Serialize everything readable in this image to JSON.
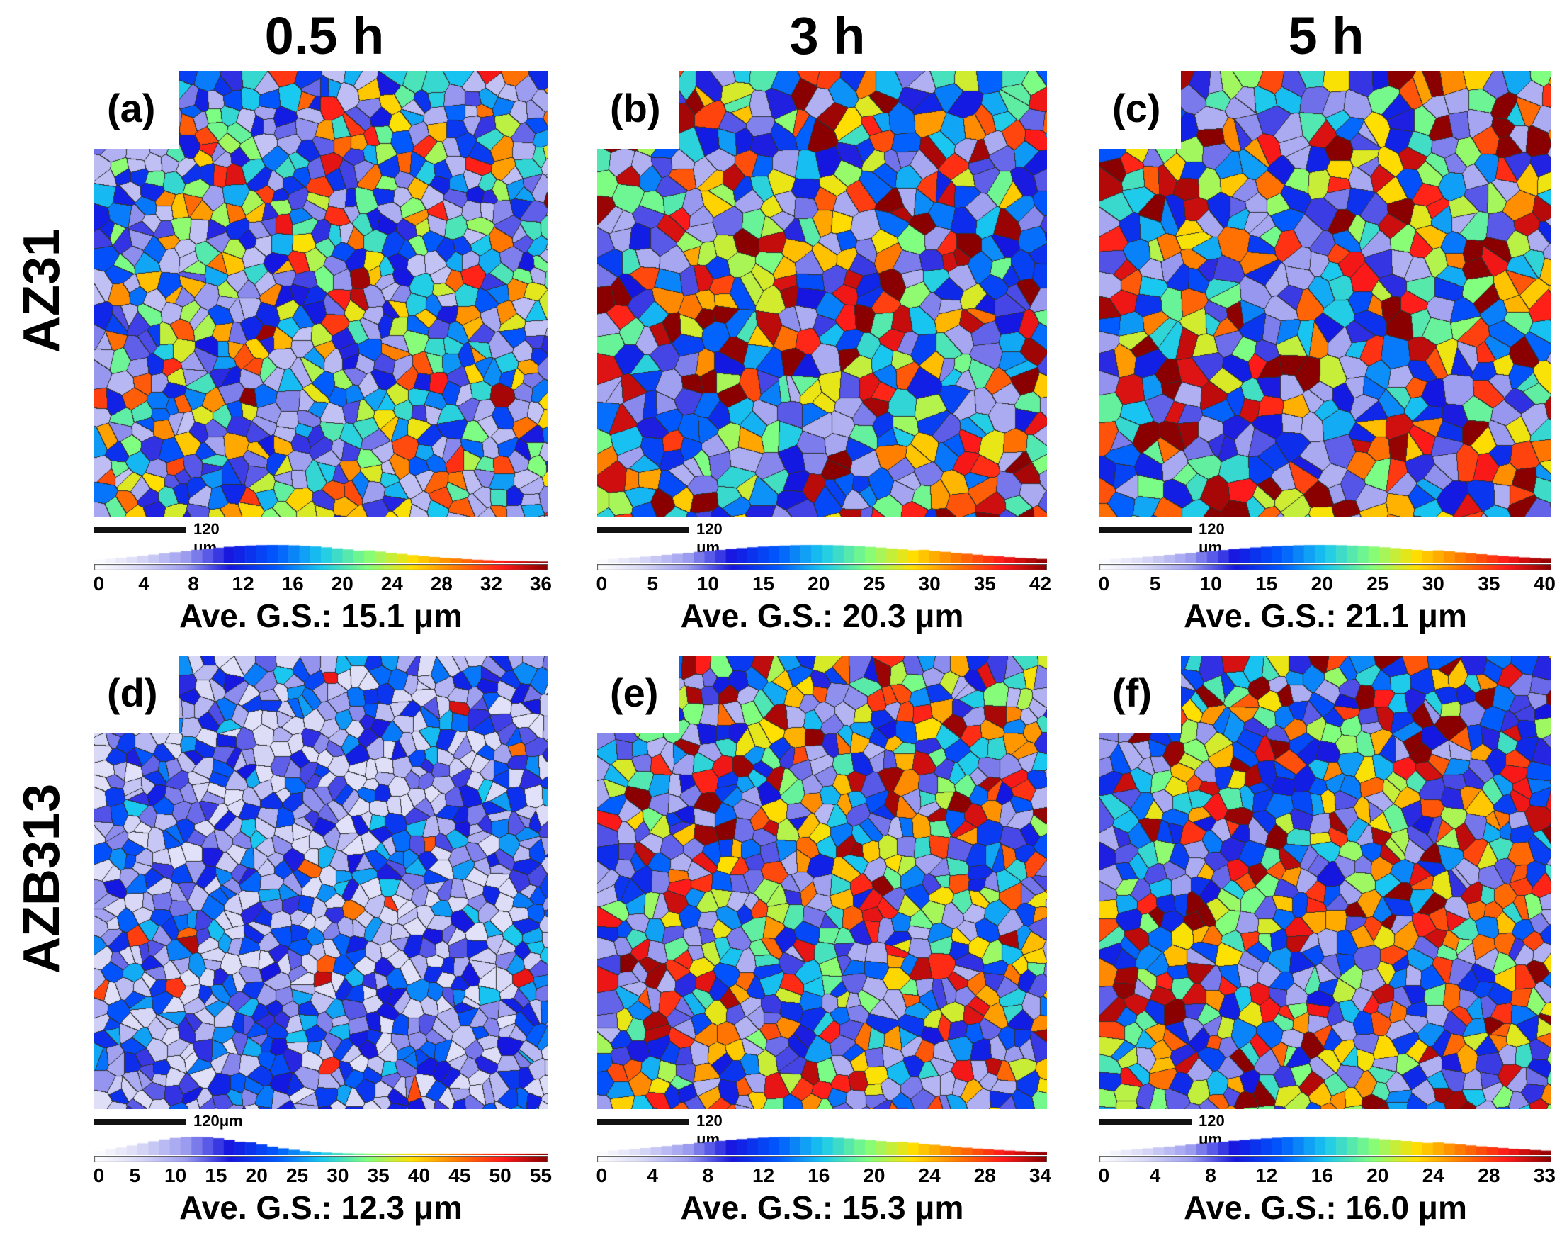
{
  "columns": [
    "0.5 h",
    "3 h",
    "5 h"
  ],
  "rows": [
    "AZ31",
    "AZB313"
  ],
  "panels": [
    {
      "label": "(a)",
      "scale": "120 μm",
      "ticks": [
        "0",
        "4",
        "8",
        "12",
        "16",
        "20",
        "24",
        "28",
        "32",
        "36"
      ],
      "ave": "Ave. G.S.: 15.1 μm",
      "mean_um": 15.1,
      "max_um": 38
    },
    {
      "label": "(b)",
      "scale": "120 μm",
      "ticks": [
        "0",
        "5",
        "10",
        "15",
        "20",
        "25",
        "30",
        "35",
        "42"
      ],
      "ave": "Ave. G.S.: 20.3 μm",
      "mean_um": 20.3,
      "max_um": 42
    },
    {
      "label": "(c)",
      "scale": "120 μm",
      "ticks": [
        "0",
        "5",
        "10",
        "15",
        "20",
        "25",
        "30",
        "35",
        "40"
      ],
      "ave": "Ave. G.S.: 21.1 μm",
      "mean_um": 21.1,
      "max_um": 43
    },
    {
      "label": "(d)",
      "scale": "120μm",
      "ticks": [
        "0",
        "5",
        "10",
        "15",
        "20",
        "25",
        "30",
        "35",
        "40",
        "45",
        "50",
        "55"
      ],
      "ave": "Ave. G.S.: 12.3 μm",
      "mean_um": 12.3,
      "max_um": 55
    },
    {
      "label": "(e)",
      "scale": "120 μm",
      "ticks": [
        "0",
        "4",
        "8",
        "12",
        "16",
        "20",
        "24",
        "28",
        "34"
      ],
      "ave": "Ave. G.S.: 15.3 μm",
      "mean_um": 15.3,
      "max_um": 34
    },
    {
      "label": "(f)",
      "scale": "120 μm",
      "ticks": [
        "0",
        "4",
        "8",
        "12",
        "16",
        "20",
        "24",
        "28",
        "33"
      ],
      "ave": "Ave. G.S.: 16.0 μm",
      "mean_um": 16.0,
      "max_um": 33
    }
  ],
  "colors": {
    "colormap": [
      "#ffffff",
      "#d9d9f7",
      "#9f9ff0",
      "#1515e0",
      "#0058ff",
      "#19c8f0",
      "#80ff80",
      "#ffe000",
      "#ff7a00",
      "#ff1a1a",
      "#8a0000"
    ],
    "boundary": "#303030"
  }
}
